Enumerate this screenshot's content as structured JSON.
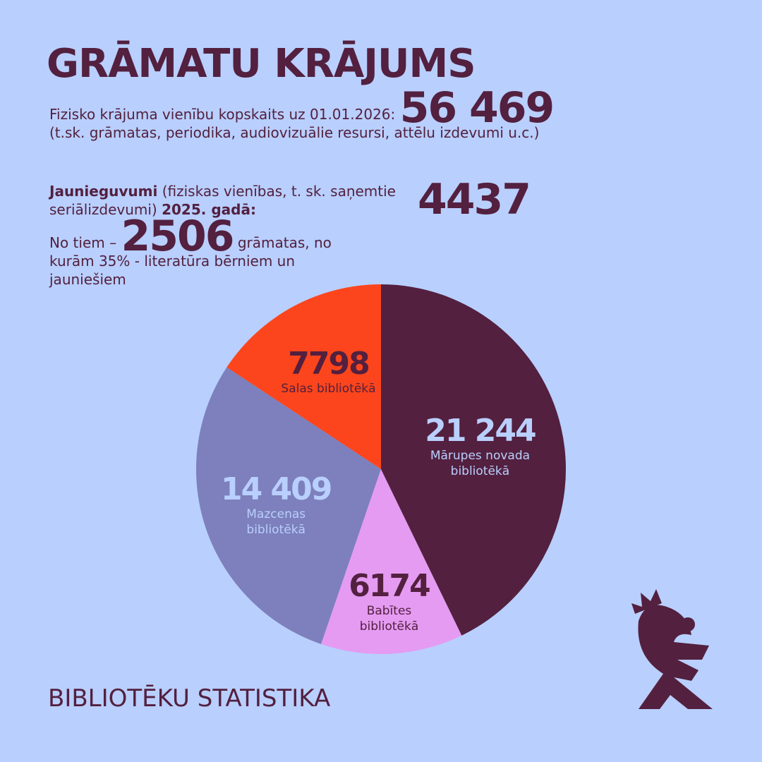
{
  "header": {
    "title": "GRĀMATU KRĀJUMS"
  },
  "total": {
    "text": "Fizisko krājuma vienību kopskaits uz 01.01.2026:",
    "value": {
      "value": 56469,
      "label": "56 469"
    },
    "note": "(t.sk. grāmatas, periodika, audiovizuālie resursi, attēlu izdevumi u.c.)"
  },
  "acquisitions": {
    "lead": "Jaunieguvumi",
    "text": "(fiziskas vienības, t. sk. saņemtie seriālizdevumi)",
    "year": "2025. gadā:",
    "value": 4437
  },
  "books": {
    "prefix": "No tiem –",
    "value": 2506,
    "suffix": "grāmatas, no kurām 35% - literatūra bērniem un jauniešiem"
  },
  "footer": {
    "text": "BIBLIOTĒKU STATISTIKA"
  },
  "chart_data": {
    "type": "pie",
    "categories": [
      "Mārupes novada bibliotēkā",
      "Babītes bibliotēkā",
      "Mazcenas bibliotēkā",
      "Salas bibliotēkā"
    ],
    "values": [
      21244,
      6174,
      14409,
      7798
    ],
    "value_labels": [
      "21 244",
      "6174",
      "14 409",
      "7798"
    ],
    "colors": [
      "#53203f",
      "#e59bf2",
      "#7d80bc",
      "#fc451c"
    ],
    "label_colors": [
      "#b9cffd",
      "#53203f",
      "#b9cffd",
      "#53203f"
    ]
  }
}
